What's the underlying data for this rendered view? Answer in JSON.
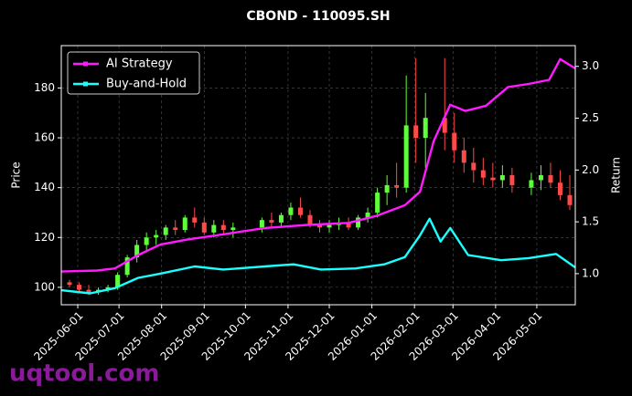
{
  "chart_data": {
    "type": "candlestick",
    "title": "CBOND - 110095.SH",
    "watermark": "uqtool.com",
    "y_label": "Price",
    "y2_label": "Return",
    "legend": "upper left",
    "grid": true,
    "up_color": "#5cff3a",
    "down_color": "#ff4a4a",
    "xlim": [
      "2025-05-20",
      "2026-05-29"
    ],
    "xticks": [
      "2025-06-01",
      "2025-07-01",
      "2025-08-01",
      "2025-09-01",
      "2025-10-01",
      "2025-11-01",
      "2025-12-01",
      "2026-01-01",
      "2026-02-01",
      "2026-03-01",
      "2026-04-01",
      "2026-05-01"
    ],
    "ylim": [
      93,
      197
    ],
    "yticks": [
      100,
      120,
      140,
      160,
      180
    ],
    "y2lim": [
      0.7,
      3.2
    ],
    "y2ticks": [
      {
        "value": 1,
        "label": "1.0"
      },
      1.5,
      {
        "value": 2,
        "label": "2.0"
      },
      2.5,
      {
        "value": 3,
        "label": "3.0"
      }
    ],
    "x": [
      "2025-05-26",
      "2025-06-02",
      "2025-06-09",
      "2025-06-16",
      "2025-06-23",
      "2025-06-30",
      "2025-07-07",
      "2025-07-14",
      "2025-07-21",
      "2025-07-28",
      "2025-08-04",
      "2025-08-11",
      "2025-08-18",
      "2025-08-25",
      "2025-09-01",
      "2025-09-08",
      "2025-09-15",
      "2025-09-22",
      "2025-10-13",
      "2025-10-20",
      "2025-10-27",
      "2025-11-03",
      "2025-11-10",
      "2025-11-17",
      "2025-11-24",
      "2025-12-01",
      "2025-12-08",
      "2025-12-15",
      "2025-12-22",
      "2025-12-29",
      "2026-01-05",
      "2026-01-12",
      "2026-01-19",
      "2026-01-26",
      "2026-02-02",
      "2026-02-09",
      "2026-02-23",
      "2026-03-02",
      "2026-03-09",
      "2026-03-16",
      "2026-03-23",
      "2026-03-30",
      "2026-04-06",
      "2026-04-13",
      "2026-04-27",
      "2026-05-04",
      "2026-05-11",
      "2026-05-18",
      "2026-05-25"
    ],
    "open": [
      102,
      101,
      99,
      98,
      99,
      100,
      105,
      112,
      117,
      120,
      121,
      124,
      123,
      128,
      126,
      122,
      125,
      123,
      124,
      127,
      126,
      129,
      132,
      129,
      125,
      124,
      125,
      126,
      124,
      128,
      130,
      138,
      141,
      140,
      165,
      160,
      168,
      162,
      155,
      150,
      147,
      144,
      143,
      145,
      140,
      143,
      145,
      142,
      137
    ],
    "high": [
      103,
      102,
      101,
      100,
      101,
      106,
      113,
      119,
      122,
      123,
      125,
      127,
      129,
      132,
      128,
      127,
      127,
      126,
      128,
      130,
      130,
      134,
      136,
      131,
      127,
      127,
      128,
      128,
      129,
      132,
      140,
      145,
      150,
      185,
      192,
      178,
      192,
      170,
      160,
      156,
      152,
      150,
      149,
      148,
      146,
      149,
      150,
      147,
      145
    ],
    "low": [
      100,
      98,
      97,
      97,
      98,
      99,
      104,
      110,
      114,
      117,
      119,
      121,
      122,
      124,
      121,
      120,
      121,
      120,
      122,
      124,
      124,
      127,
      128,
      124,
      122,
      122,
      123,
      123,
      123,
      126,
      128,
      133,
      136,
      138,
      150,
      148,
      155,
      150,
      146,
      142,
      141,
      140,
      140,
      138,
      137,
      139,
      140,
      135,
      131
    ],
    "close": [
      101,
      99,
      98,
      99,
      100,
      105,
      112,
      117,
      120,
      121,
      124,
      123,
      128,
      126,
      122,
      125,
      123,
      124,
      127,
      126,
      129,
      132,
      129,
      125,
      124,
      125,
      126,
      124,
      128,
      130,
      138,
      141,
      140,
      165,
      160,
      168,
      162,
      155,
      150,
      147,
      144,
      143,
      145,
      141,
      143,
      145,
      142,
      137,
      133
    ],
    "series": [
      {
        "name": "AI Strategy",
        "color": "#ff1aff",
        "axis": "y2",
        "x": [
          "2025-05-20",
          "2025-06-15",
          "2025-06-28",
          "2025-07-15",
          "2025-07-31",
          "2025-08-20",
          "2025-09-10",
          "2025-10-15",
          "2025-11-15",
          "2025-12-15",
          "2026-01-05",
          "2026-01-25",
          "2026-02-05",
          "2026-02-15",
          "2026-02-27",
          "2026-03-10",
          "2026-03-25",
          "2026-04-10",
          "2026-04-25",
          "2026-05-10",
          "2026-05-18",
          "2026-05-29"
        ],
        "values": [
          1.02,
          1.03,
          1.05,
          1.18,
          1.28,
          1.33,
          1.37,
          1.44,
          1.47,
          1.49,
          1.56,
          1.66,
          1.79,
          2.28,
          2.63,
          2.57,
          2.62,
          2.8,
          2.83,
          2.87,
          3.07,
          2.98
        ]
      },
      {
        "name": "Buy-and-Hold",
        "color": "#1affff",
        "axis": "y2",
        "x": [
          "2025-05-20",
          "2025-06-10",
          "2025-06-28",
          "2025-07-15",
          "2025-07-31",
          "2025-08-25",
          "2025-09-15",
          "2025-10-15",
          "2025-11-05",
          "2025-11-25",
          "2025-12-20",
          "2026-01-10",
          "2026-01-25",
          "2026-02-05",
          "2026-02-12",
          "2026-02-20",
          "2026-02-27",
          "2026-03-12",
          "2026-04-05",
          "2026-04-25",
          "2026-05-15",
          "2026-05-29"
        ],
        "values": [
          0.84,
          0.81,
          0.86,
          0.96,
          1.0,
          1.07,
          1.04,
          1.07,
          1.09,
          1.04,
          1.05,
          1.09,
          1.16,
          1.37,
          1.53,
          1.31,
          1.44,
          1.18,
          1.13,
          1.15,
          1.19,
          1.06
        ]
      }
    ]
  }
}
